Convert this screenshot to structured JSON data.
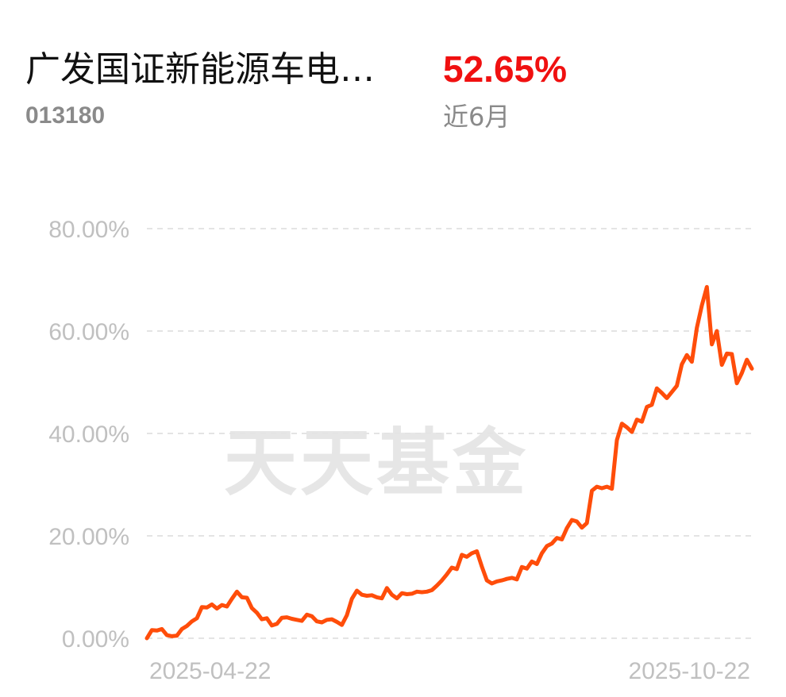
{
  "fund": {
    "name": "广发国证新能源车电…",
    "code": "013180",
    "return_value": "52.65%",
    "return_period": "近6月"
  },
  "watermark": "天天基金",
  "colors": {
    "line": "#ff4d0a",
    "return": "#f01010",
    "axis_text": "#c0c0c0",
    "grid": "#e4e4e4"
  },
  "chart_data": {
    "type": "line",
    "title": "",
    "xlabel": "",
    "ylabel": "",
    "ylim": [
      0,
      80
    ],
    "yticks": [
      "0.00%",
      "20.00%",
      "40.00%",
      "60.00%",
      "80.00%"
    ],
    "xtick_labels": [
      "2025-04-22",
      "2025-10-22"
    ],
    "x_range": [
      "2025-04-22",
      "2025-10-22"
    ],
    "grid": true,
    "series": [
      {
        "values": [
          0.0,
          1.6,
          1.5,
          1.8,
          0.6,
          0.4,
          0.5,
          1.8,
          2.4,
          3.3,
          3.9,
          6.1,
          6.0,
          6.6,
          5.8,
          6.5,
          6.2,
          7.7,
          9.1,
          8.0,
          7.9,
          5.9,
          5.0,
          3.7,
          3.9,
          2.5,
          2.8,
          4.0,
          4.1,
          3.8,
          3.6,
          3.4,
          4.6,
          4.3,
          3.3,
          3.1,
          3.6,
          3.7,
          3.2,
          2.6,
          4.5,
          7.7,
          9.3,
          8.5,
          8.3,
          8.4,
          8.0,
          7.8,
          9.8,
          8.5,
          7.8,
          8.8,
          8.6,
          8.7,
          9.1,
          9.0,
          9.1,
          9.4,
          10.3,
          11.3,
          12.5,
          13.8,
          13.5,
          16.3,
          15.9,
          16.6,
          17.0,
          14.0,
          11.3,
          10.7,
          11.1,
          11.3,
          11.6,
          11.8,
          11.5,
          13.9,
          13.6,
          15.0,
          14.5,
          16.6,
          18.0,
          18.5,
          19.6,
          19.3,
          21.5,
          23.1,
          22.8,
          21.6,
          22.5,
          28.8,
          29.6,
          29.3,
          29.6,
          29.2,
          38.7,
          41.9,
          41.2,
          40.3,
          42.7,
          42.3,
          45.2,
          45.6,
          48.8,
          47.9,
          46.9,
          48.1,
          49.3,
          53.5,
          55.3,
          54.0,
          60.6,
          65.0,
          68.6,
          57.4,
          60.0,
          53.4,
          55.6,
          55.5,
          49.8,
          51.8,
          54.4,
          52.65
        ]
      }
    ]
  }
}
